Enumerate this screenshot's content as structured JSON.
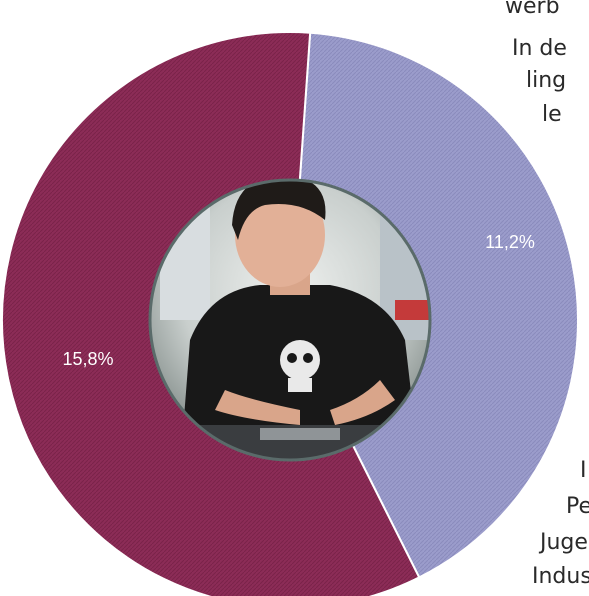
{
  "chart_data": {
    "type": "pie",
    "categories": [
      "",
      ""
    ],
    "values": [
      11.2,
      15.8
    ],
    "labels": [
      "11,2%",
      "15,8%"
    ],
    "colors": [
      "#9b9ccb",
      "#8c2c57"
    ],
    "title": ""
  },
  "center_photo": "worker-photo",
  "side_text": {
    "line1": "werb",
    "line2": "In de",
    "line3": "ling",
    "line4": "le",
    "line5": "I",
    "line6": "Pe",
    "line7": "Juge",
    "line8": "Indus"
  }
}
